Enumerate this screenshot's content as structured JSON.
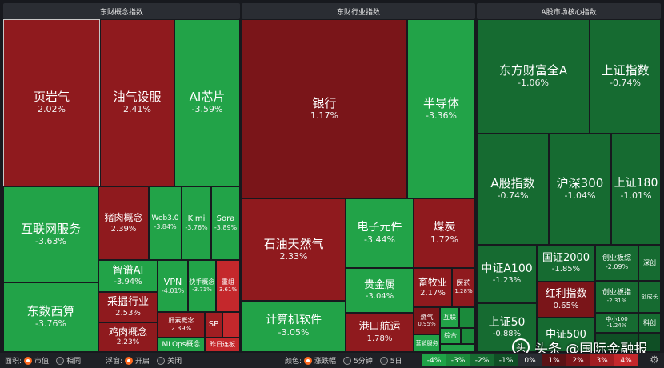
{
  "panels": {
    "concept": "东财概念指数",
    "industry": "东财行业指数",
    "core": "A股市场核心指数"
  },
  "tiles": {
    "yeyanqi": {
      "name": "页岩气",
      "pct": "2.02%"
    },
    "youqi": {
      "name": "油气设服",
      "pct": "2.41%"
    },
    "aichip": {
      "name": "AI芯片",
      "pct": "-3.59%"
    },
    "hulianwang": {
      "name": "互联网服务",
      "pct": "-3.63%"
    },
    "zhurou": {
      "name": "猪肉概念",
      "pct": "2.39%"
    },
    "web3": {
      "name": "Web3.0",
      "pct": "-3.84%"
    },
    "kimi": {
      "name": "Kimi",
      "pct": "-3.76%"
    },
    "sora": {
      "name": "Sora",
      "pct": "-3.89%"
    },
    "zhipu": {
      "name": "智谱AI",
      "pct": "-3.94%"
    },
    "vpn": {
      "name": "VPN",
      "pct": "-4.01%"
    },
    "kuaishou": {
      "name": "快手概念",
      "pct": "-3.71%"
    },
    "chongzu": {
      "name": "重组",
      "pct": "3.61%"
    },
    "caijue": {
      "name": "采掘行业",
      "pct": "2.53%"
    },
    "gantu": {
      "name": "肝素概念",
      "pct": "2.39%"
    },
    "sp": {
      "name": "SP",
      "pct": ""
    },
    "dongshu": {
      "name": "东数西算",
      "pct": "-3.76%"
    },
    "jirou": {
      "name": "鸡肉概念",
      "pct": "2.23%"
    },
    "mlops": {
      "name": "MLOps概念",
      "pct": ""
    },
    "zuoriliang": {
      "name": "昨日连板",
      "pct": ""
    },
    "yinhang": {
      "name": "银行",
      "pct": "1.17%"
    },
    "bandaoti": {
      "name": "半导体",
      "pct": "-3.36%"
    },
    "shiyou": {
      "name": "石油天然气",
      "pct": "2.33%"
    },
    "dianzi": {
      "name": "电子元件",
      "pct": "-3.44%"
    },
    "meitan": {
      "name": "煤炭",
      "pct": "1.72%"
    },
    "guijinshu": {
      "name": "贵金属",
      "pct": "-3.04%"
    },
    "xumu": {
      "name": "畜牧业",
      "pct": "2.17%"
    },
    "yiyao": {
      "name": "医药",
      "pct": "1.28%"
    },
    "jisuanji": {
      "name": "计算机软件",
      "pct": "-3.05%"
    },
    "gangkou": {
      "name": "港口航运",
      "pct": "1.78%"
    },
    "ranqi": {
      "name": "燃气",
      "pct": "0.95%"
    },
    "hulian2": {
      "name": "互联",
      "pct": ""
    },
    "zonghe": {
      "name": "综合",
      "pct": ""
    },
    "yingxiao": {
      "name": "营销服务",
      "pct": ""
    },
    "dongfangcaifu": {
      "name": "东方财富全A",
      "pct": "-1.06%"
    },
    "shangzheng": {
      "name": "上证指数",
      "pct": "-0.74%"
    },
    "agu": {
      "name": "A股指数",
      "pct": "-0.74%"
    },
    "hs300": {
      "name": "沪深300",
      "pct": "-1.04%"
    },
    "sz180": {
      "name": "上证180",
      "pct": "-1.01%"
    },
    "zza100": {
      "name": "中证A100",
      "pct": "-1.23%"
    },
    "gz2000": {
      "name": "国证2000",
      "pct": "-1.85%"
    },
    "cyz": {
      "name": "创业板综",
      "pct": "-2.09%"
    },
    "shenzheng": {
      "name": "深创",
      "pct": ""
    },
    "hongli": {
      "name": "红利指数",
      "pct": "0.65%"
    },
    "cyb": {
      "name": "创业板指",
      "pct": "-2.31%"
    },
    "sz50": {
      "name": "上证50",
      "pct": "-0.88%"
    },
    "zz500": {
      "name": "中证500",
      "pct": ""
    },
    "zx100": {
      "name": "中小100",
      "pct": "-1.24%"
    },
    "cyc": {
      "name": "创成长",
      "pct": ""
    },
    "kechuang": {
      "name": "科创",
      "pct": ""
    }
  },
  "footer": {
    "area_label": "面积:",
    "area_opt1": "市值",
    "area_opt2": "相同",
    "float_label": "浮窗:",
    "float_opt1": "开启",
    "float_opt2": "关闭",
    "color_label": "颜色:",
    "color_opt1": "涨跌幅",
    "color_opt2": "5分钟",
    "color_opt3": "5日",
    "legend": [
      "-4%",
      "-3%",
      "-2%",
      "-1%",
      "0%",
      "1%",
      "2%",
      "3%",
      "4%"
    ],
    "legend_colors": [
      "#1fa347",
      "#1b8a3b",
      "#166b31",
      "#0f4f25",
      "#2a2d33",
      "#5a1215",
      "#7a1519",
      "#a01e22",
      "#c4282c"
    ]
  },
  "watermark": {
    "logo": "头",
    "text": "头条 @国际金融报"
  }
}
